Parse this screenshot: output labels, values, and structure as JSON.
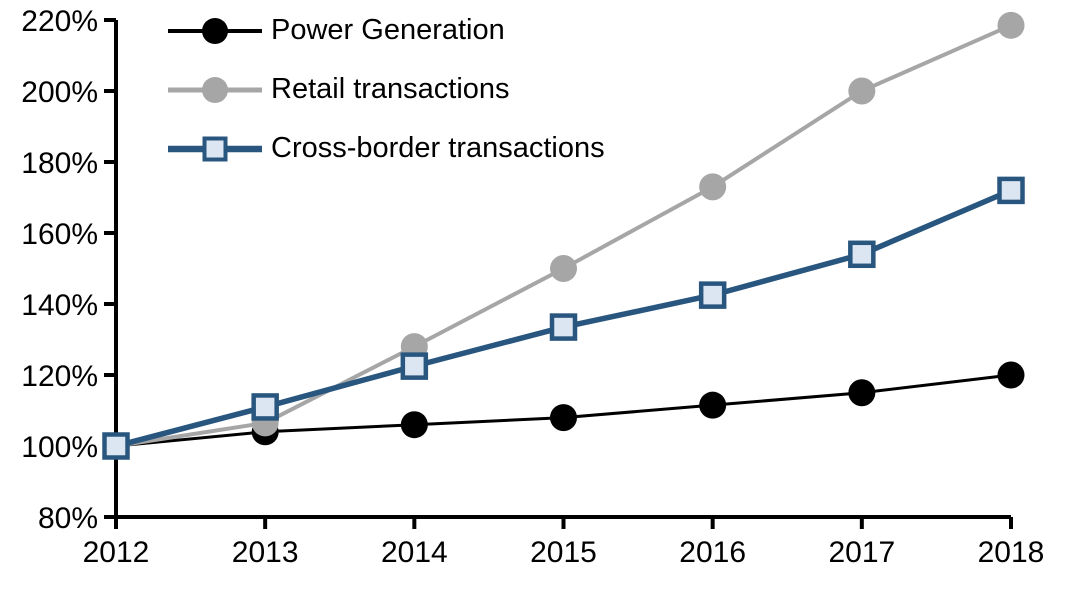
{
  "chart_data": {
    "type": "line",
    "title": "",
    "xlabel": "",
    "ylabel": "",
    "categories": [
      "2012",
      "2013",
      "2014",
      "2015",
      "2016",
      "2017",
      "2018"
    ],
    "y_ticks": [
      "80%",
      "100%",
      "120%",
      "140%",
      "160%",
      "180%",
      "200%",
      "220%"
    ],
    "ylim": [
      80,
      220
    ],
    "grid": false,
    "legend_position": "top-left-inside",
    "background_color": "#FFFFFF",
    "axis_color": "#000000",
    "series": [
      {
        "name": "Power Generation",
        "marker": "circle",
        "color": "#000000",
        "marker_fill": "#000000",
        "line_width": 3,
        "values": [
          100,
          104,
          106,
          108,
          111.5,
          115,
          120
        ]
      },
      {
        "name": "Retail transactions",
        "marker": "circle",
        "color": "#A6A6A6",
        "marker_fill": "#A6A6A6",
        "line_width": 4,
        "values": [
          100,
          106.5,
          128,
          150,
          173,
          200,
          218.5
        ]
      },
      {
        "name": "Cross-border transactions",
        "marker": "square",
        "color": "#28567F",
        "marker_fill": "#DCE6F2",
        "line_width": 5.5,
        "values": [
          100,
          111,
          122.5,
          133.5,
          142.5,
          154,
          172
        ]
      }
    ]
  }
}
